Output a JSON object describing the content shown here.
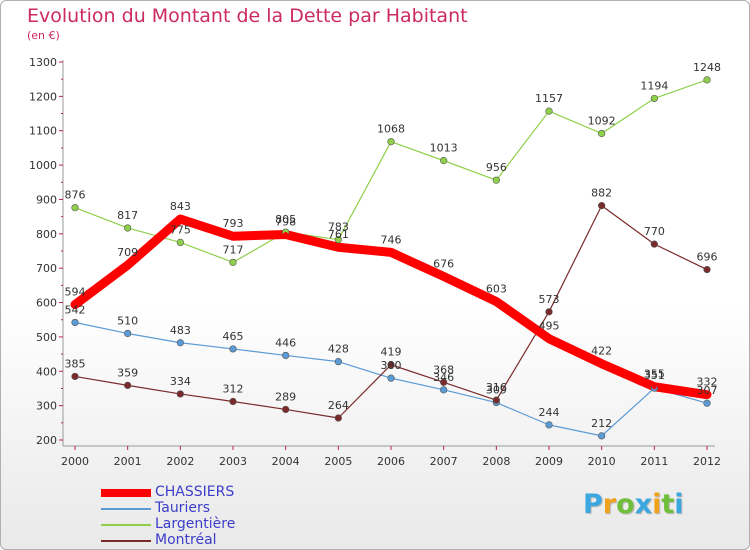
{
  "chart_data": {
    "type": "line",
    "title": "Evolution du Montant de la Dette par Habitant",
    "subtitle": "(en €)",
    "x": [
      "2000",
      "2001",
      "2002",
      "2003",
      "2004",
      "2005",
      "2006",
      "2007",
      "2008",
      "2009",
      "2010",
      "2011",
      "2012"
    ],
    "y_ticks": [
      "200",
      "300",
      "400",
      "500",
      "600",
      "700",
      "800",
      "900",
      "1000",
      "1100",
      "1200",
      "1300"
    ],
    "ylim": [
      200,
      1300
    ],
    "grid": false,
    "legend_position": "bottom-left",
    "series": [
      {
        "name": "CHASSIERS",
        "color": "#ff0000",
        "values": [
          594,
          709,
          843,
          793,
          798,
          761,
          746,
          676,
          603,
          495,
          422,
          355,
          332
        ]
      },
      {
        "name": "Tauriers",
        "color": "#5b9bd5",
        "values": [
          542,
          510,
          483,
          465,
          446,
          428,
          380,
          346,
          309,
          244,
          212,
          351,
          307
        ]
      },
      {
        "name": "Largentière",
        "color": "#8fd04a",
        "values": [
          876,
          817,
          775,
          717,
          805,
          783,
          1068,
          1013,
          956,
          1157,
          1092,
          1194,
          1248
        ]
      },
      {
        "name": "Montréal",
        "color": "#7a2a2a",
        "values": [
          385,
          359,
          334,
          312,
          289,
          264,
          419,
          368,
          316,
          573,
          882,
          770,
          696
        ]
      }
    ]
  },
  "logo": {
    "letters": [
      "P",
      "r",
      "o",
      "x",
      "i",
      "t",
      "i"
    ],
    "colors": [
      "#3aa7e0",
      "#f0a21b",
      "#6fbf3a",
      "#3aa7e0",
      "#f0a21b",
      "#6fbf3a",
      "#3aa7e0"
    ]
  }
}
